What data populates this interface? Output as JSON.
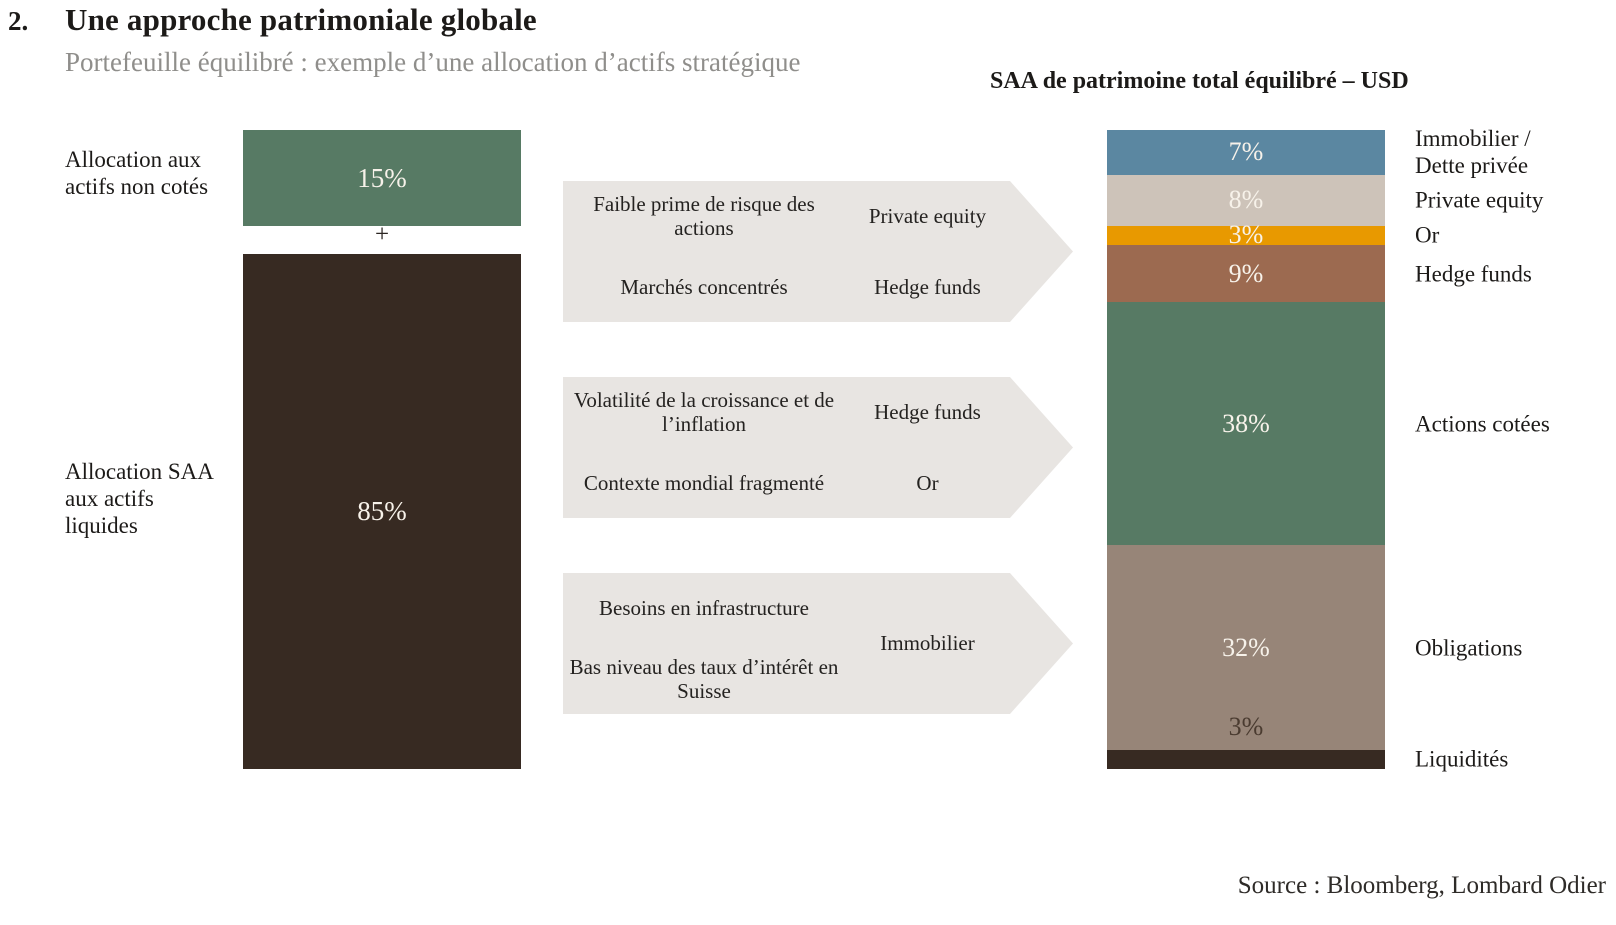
{
  "header": {
    "number": "2.",
    "title": "Une approche patrimoniale globale",
    "subtitle": "Portefeuille équilibré : exemple d’une allocation d’actifs stratégique"
  },
  "left_chart": {
    "top_label": "Allocation aux actifs non cotés",
    "top_value": "15%",
    "plus": "+",
    "bottom_value": "85%",
    "bottom_label": "Allocation SAA aux actifs liquides"
  },
  "callouts": [
    {
      "factors": [
        "Faible prime de risque des actions",
        "Marchés concentrés"
      ],
      "assets": [
        "Private equity",
        "Hedge funds"
      ]
    },
    {
      "factors": [
        "Volatilité de la croissance et de l’inflation",
        "Contexte mondial fragmenté"
      ],
      "assets": [
        "Hedge funds",
        "Or"
      ]
    },
    {
      "factors": [
        "Besoins en infrastructure",
        "Bas niveau des taux d’intérêt en Suisse"
      ],
      "assets": [
        "Immobilier"
      ]
    }
  ],
  "right_chart": {
    "title": "SAA de patrimoine total équilibré – USD",
    "segments": [
      {
        "label": "Immobilier /\nDette privée",
        "pct": "7%",
        "value": 7,
        "color": "#5b87a1",
        "pct_style": "inside"
      },
      {
        "label": "Private equity",
        "pct": "8%",
        "value": 8,
        "color": "#cdc3b9",
        "pct_style": "inside"
      },
      {
        "label": "Or",
        "pct": "3%",
        "value": 3,
        "color": "#e89900",
        "pct_style": "inside"
      },
      {
        "label": "Hedge funds",
        "pct": "9%",
        "value": 9,
        "color": "#9c6a50",
        "pct_style": "inside"
      },
      {
        "label": "Actions cotées",
        "pct": "38%",
        "value": 38,
        "color": "#577a64",
        "pct_style": "inside"
      },
      {
        "label": "Obligations",
        "pct": "32%",
        "value": 32,
        "color": "#978578",
        "pct_style": "inside"
      },
      {
        "label": "Liquidités",
        "pct": "3%",
        "value": 3,
        "color": "#372a22",
        "pct_style": "above"
      }
    ]
  },
  "source": {
    "text": "Source : Bloomberg, Lombard Odier"
  },
  "colors": {
    "accent_green": "#577a64",
    "accent_dark_brown": "#372a22",
    "callout_gray": "#e8e5e2",
    "blue": "#5b87a1",
    "beige": "#cdc3b9",
    "orange": "#e89900",
    "brown": "#9c6a50",
    "taupe": "#978578",
    "subtitle_gray": "#8f8e8b",
    "pct_text_light": "#f7f2ea",
    "pct_text_dark": "#4a3b30"
  },
  "chart_data": [
    {
      "type": "bar",
      "title": "",
      "categories": [
        "Allocation aux actifs non cotés",
        "Allocation SAA aux actifs liquides"
      ],
      "values": [
        15,
        85
      ],
      "xlabel": "",
      "ylabel": "",
      "ylim": [
        0,
        100
      ],
      "legend_position": "none",
      "grid": false,
      "annotations": [
        "15%",
        "+",
        "85%"
      ]
    },
    {
      "type": "bar",
      "title": "SAA de patrimoine total équilibré – USD",
      "categories": [
        "Immobilier / Dette privée",
        "Private equity",
        "Or",
        "Hedge funds",
        "Actions cotées",
        "Obligations",
        "Liquidités"
      ],
      "values": [
        7,
        8,
        3,
        9,
        38,
        32,
        3
      ],
      "xlabel": "",
      "ylabel": "",
      "ylim": [
        0,
        100
      ],
      "legend_position": "right",
      "grid": false,
      "annotations": [
        "7%",
        "8%",
        "3%",
        "9%",
        "38%",
        "32%",
        "3%"
      ]
    }
  ]
}
